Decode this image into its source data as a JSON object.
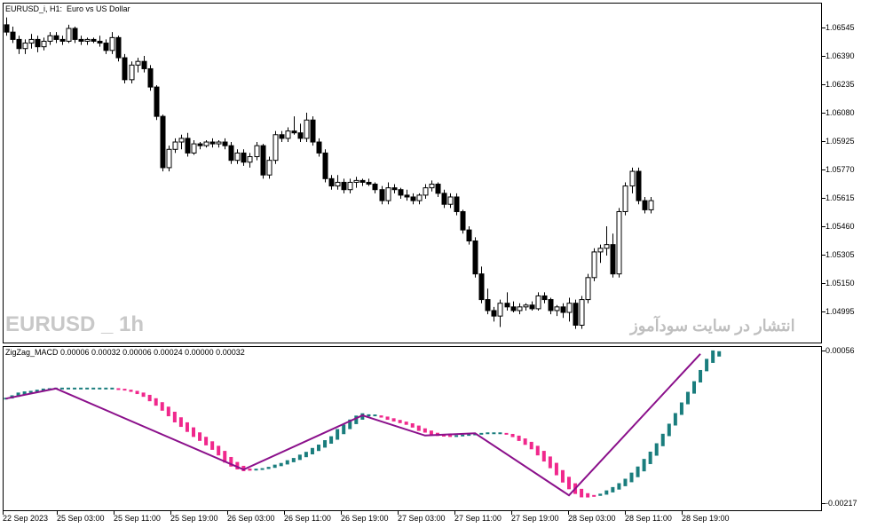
{
  "main_chart": {
    "title": "EURUSD_i, H1:  Euro vs US Dollar",
    "watermark_symbol": "EURUSD _ 1h",
    "watermark_persian": "انتشار در سایت سودآموز",
    "price_labels": [
      "1.06545",
      "1.06390",
      "1.06235",
      "1.06080",
      "1.05925",
      "1.05770",
      "1.05615",
      "1.05460",
      "1.05305",
      "1.05150",
      "1.04995"
    ]
  },
  "indicator": {
    "title": "ZigZag_MACD 0.00006 0.00032 0.00006 0.00024 0.00000 0.00032",
    "labels": [
      "0.00056",
      "-0.00217"
    ]
  },
  "time_labels": [
    "22 Sep 2023",
    "25 Sep 03:00",
    "25 Sep 11:00",
    "25 Sep 19:00",
    "26 Sep 03:00",
    "26 Sep 11:00",
    "26 Sep 19:00",
    "27 Sep 03:00",
    "27 Sep 11:00",
    "27 Sep 19:00",
    "28 Sep 03:00",
    "28 Sep 11:00",
    "28 Sep 19:00"
  ],
  "chart_data": [
    {
      "type": "candlestick",
      "title": "EURUSD_i, H1:  Euro vs US Dollar",
      "ylim": [
        1.0488,
        1.0668
      ],
      "y_ticks": [
        1.06545,
        1.0639,
        1.06235,
        1.0608,
        1.05925,
        1.0577,
        1.05615,
        1.0546,
        1.05305,
        1.0515,
        1.04995
      ],
      "colors": {
        "bull": "#ffffff",
        "bear": "#000000",
        "outline": "#000000"
      },
      "candles": [
        [
          1.0656,
          1.066,
          1.065,
          1.0652
        ],
        [
          1.0652,
          1.0655,
          1.0646,
          1.0648
        ],
        [
          1.0648,
          1.065,
          1.064,
          1.0643
        ],
        [
          1.0643,
          1.0648,
          1.064,
          1.0646
        ],
        [
          1.0646,
          1.0651,
          1.0643,
          1.0648
        ],
        [
          1.0648,
          1.065,
          1.0641,
          1.0644
        ],
        [
          1.0644,
          1.0649,
          1.0642,
          1.0647
        ],
        [
          1.0647,
          1.0652,
          1.0645,
          1.065
        ],
        [
          1.065,
          1.0652,
          1.0646,
          1.0648
        ],
        [
          1.0648,
          1.065,
          1.0645,
          1.0647
        ],
        [
          1.0647,
          1.0656,
          1.0646,
          1.0654
        ],
        [
          1.0654,
          1.0655,
          1.0646,
          1.0648
        ],
        [
          1.0648,
          1.065,
          1.0645,
          1.0647
        ],
        [
          1.0647,
          1.0649,
          1.0645,
          1.0648
        ],
        [
          1.0648,
          1.0649,
          1.0646,
          1.0647
        ],
        [
          1.0647,
          1.065,
          1.0644,
          1.0646
        ],
        [
          1.0646,
          1.0648,
          1.064,
          1.0642
        ],
        [
          1.0642,
          1.0652,
          1.064,
          1.0649
        ],
        [
          1.0649,
          1.065,
          1.0636,
          1.0638
        ],
        [
          1.0638,
          1.064,
          1.0624,
          1.0626
        ],
        [
          1.0626,
          1.0636,
          1.0624,
          1.0634
        ],
        [
          1.0634,
          1.0638,
          1.063,
          1.0636
        ],
        [
          1.0636,
          1.0639,
          1.063,
          1.0632
        ],
        [
          1.0632,
          1.0634,
          1.062,
          1.0622
        ],
        [
          1.0622,
          1.0623,
          1.0604,
          1.0606
        ],
        [
          1.0606,
          1.0607,
          1.0576,
          1.0578
        ],
        [
          1.0578,
          1.059,
          1.0576,
          1.0588
        ],
        [
          1.0588,
          1.0594,
          1.0586,
          1.0592
        ],
        [
          1.0592,
          1.0596,
          1.0588,
          1.0594
        ],
        [
          1.0594,
          1.0597,
          1.0584,
          1.0586
        ],
        [
          1.0586,
          1.0593,
          1.0585,
          1.0591
        ],
        [
          1.0591,
          1.0592,
          1.0588,
          1.059
        ],
        [
          1.059,
          1.0593,
          1.0589,
          1.0592
        ],
        [
          1.0592,
          1.0594,
          1.0589,
          1.0591
        ],
        [
          1.0591,
          1.0593,
          1.0589,
          1.0592
        ],
        [
          1.0592,
          1.0594,
          1.0588,
          1.059
        ],
        [
          1.059,
          1.0592,
          1.058,
          1.0582
        ],
        [
          1.0582,
          1.0588,
          1.058,
          1.0586
        ],
        [
          1.0586,
          1.0588,
          1.0579,
          1.0581
        ],
        [
          1.0581,
          1.0586,
          1.0578,
          1.0584
        ],
        [
          1.0584,
          1.0592,
          1.0582,
          1.059
        ],
        [
          1.059,
          1.0591,
          1.0572,
          1.0574
        ],
        [
          1.0574,
          1.0584,
          1.0572,
          1.0582
        ],
        [
          1.0582,
          1.0598,
          1.058,
          1.0596
        ],
        [
          1.0596,
          1.0598,
          1.0592,
          1.0594
        ],
        [
          1.0594,
          1.06,
          1.0592,
          1.0598
        ],
        [
          1.0598,
          1.0606,
          1.0596,
          1.0597
        ],
        [
          1.0597,
          1.0602,
          1.0592,
          1.0594
        ],
        [
          1.0594,
          1.0608,
          1.0592,
          1.0604
        ],
        [
          1.0604,
          1.0606,
          1.059,
          1.0592
        ],
        [
          1.0592,
          1.0594,
          1.0584,
          1.0586
        ],
        [
          1.0586,
          1.0588,
          1.057,
          1.0572
        ],
        [
          1.0572,
          1.0574,
          1.0566,
          1.0568
        ],
        [
          1.0568,
          1.0574,
          1.0566,
          1.057
        ],
        [
          1.057,
          1.0572,
          1.0564,
          1.0566
        ],
        [
          1.0566,
          1.0572,
          1.0564,
          1.057
        ],
        [
          1.057,
          1.0573,
          1.0567,
          1.0571
        ],
        [
          1.0571,
          1.0572,
          1.0568,
          1.057
        ],
        [
          1.057,
          1.0572,
          1.0568,
          1.0569
        ],
        [
          1.0569,
          1.057,
          1.0564,
          1.0566
        ],
        [
          1.0566,
          1.0568,
          1.0558,
          1.056
        ],
        [
          1.056,
          1.057,
          1.0558,
          1.0567
        ],
        [
          1.0567,
          1.0569,
          1.0564,
          1.0566
        ],
        [
          1.0566,
          1.0567,
          1.0561,
          1.0563
        ],
        [
          1.0563,
          1.0566,
          1.056,
          1.0562
        ],
        [
          1.0562,
          1.0564,
          1.0558,
          1.056
        ],
        [
          1.056,
          1.0564,
          1.0558,
          1.0563
        ],
        [
          1.0563,
          1.0569,
          1.0561,
          1.0567
        ],
        [
          1.0567,
          1.0571,
          1.0565,
          1.0569
        ],
        [
          1.0569,
          1.057,
          1.0562,
          1.0564
        ],
        [
          1.0564,
          1.0566,
          1.0556,
          1.0558
        ],
        [
          1.0558,
          1.0564,
          1.0556,
          1.0562
        ],
        [
          1.0562,
          1.0564,
          1.0552,
          1.0554
        ],
        [
          1.0554,
          1.0555,
          1.0542,
          1.0544
        ],
        [
          1.0544,
          1.0546,
          1.0536,
          1.0538
        ],
        [
          1.0538,
          1.054,
          1.0518,
          1.052
        ],
        [
          1.052,
          1.0524,
          1.0504,
          1.0506
        ],
        [
          1.0506,
          1.0512,
          1.0498,
          1.05
        ],
        [
          1.05,
          1.0502,
          1.0494,
          1.0497
        ],
        [
          1.0497,
          1.0506,
          1.0491,
          1.0504
        ],
        [
          1.0504,
          1.051,
          1.05,
          1.0502
        ],
        [
          1.0502,
          1.0505,
          1.0499,
          1.05
        ],
        [
          1.05,
          1.0504,
          1.0498,
          1.0502
        ],
        [
          1.0502,
          1.0504,
          1.05,
          1.0503
        ],
        [
          1.0503,
          1.0505,
          1.05,
          1.0501
        ],
        [
          1.0501,
          1.051,
          1.05,
          1.0508
        ],
        [
          1.0508,
          1.051,
          1.0504,
          1.0506
        ],
        [
          1.0506,
          1.0507,
          1.0498,
          1.05
        ],
        [
          1.05,
          1.0503,
          1.0497,
          1.0502
        ],
        [
          1.0502,
          1.0504,
          1.0496,
          1.0499
        ],
        [
          1.0499,
          1.0507,
          1.0494,
          1.0504
        ],
        [
          1.0504,
          1.0506,
          1.049,
          1.0492
        ],
        [
          1.0492,
          1.0508,
          1.049,
          1.0506
        ],
        [
          1.0506,
          1.052,
          1.0504,
          1.0518
        ],
        [
          1.0518,
          1.0534,
          1.0516,
          1.0532
        ],
        [
          1.0532,
          1.0536,
          1.0526,
          1.0534
        ],
        [
          1.0534,
          1.0546,
          1.053,
          1.0536
        ],
        [
          1.0536,
          1.0542,
          1.0518,
          1.052
        ],
        [
          1.052,
          1.0556,
          1.0518,
          1.0554
        ],
        [
          1.0554,
          1.057,
          1.0552,
          1.0568
        ],
        [
          1.0568,
          1.0578,
          1.0564,
          1.0576
        ],
        [
          1.0576,
          1.0578,
          1.0558,
          1.056
        ],
        [
          1.056,
          1.0562,
          1.0553,
          1.0555
        ],
        [
          1.0555,
          1.0562,
          1.0553,
          1.056
        ]
      ]
    },
    {
      "type": "line",
      "title": "ZigZag_MACD 0.00006 0.00032 0.00006 0.00024 0.00000 0.00032",
      "ylim": [
        -0.00217,
        0.00056
      ],
      "colors": {
        "rising": "#1a7d7d",
        "falling": "#f0288c",
        "zigzag": "#8b108b"
      },
      "zigzag_points": [
        [
          0,
          -0.0003
        ],
        [
          8,
          -0.00012
        ],
        [
          38,
          -0.00157
        ],
        [
          57,
          -0.0006
        ],
        [
          67,
          -0.00096
        ],
        [
          75,
          -0.00092
        ],
        [
          90,
          -0.00203
        ],
        [
          111,
          0.0005
        ]
      ],
      "series": [
        {
          "values": [
            -0.0003,
            -0.00027,
            -0.00023,
            -0.0002,
            -0.00018,
            -0.00016,
            -0.00014,
            -0.00013,
            -0.00012,
            -0.00012,
            -0.00012,
            -0.00012,
            -0.00012,
            -0.00012,
            -0.00012,
            -0.00012,
            -0.00012,
            -0.00012,
            -0.00013,
            -0.00014,
            -0.00016,
            -0.00019,
            -0.00023,
            -0.00029,
            -0.00036,
            -0.00044,
            -0.00053,
            -0.00063,
            -0.00072,
            -0.00081,
            -0.0009,
            -0.00098,
            -0.00106,
            -0.00114,
            -0.00123,
            -0.00134,
            -0.00143,
            -0.0015,
            -0.00155,
            -0.00157,
            -0.00157,
            -0.00156,
            -0.00154,
            -0.00151,
            -0.00148,
            -0.00144,
            -0.0014,
            -0.00135,
            -0.0013,
            -0.00124,
            -0.00118,
            -0.00111,
            -0.00104,
            -0.00094,
            -0.00085,
            -0.00076,
            -0.00068,
            -0.00062,
            -0.0006,
            -0.0006,
            -0.00062,
            -0.00065,
            -0.00068,
            -0.00071,
            -0.00074,
            -0.00078,
            -0.00083,
            -0.00087,
            -0.00091,
            -0.00094,
            -0.00096,
            -0.00097,
            -0.00097,
            -0.00096,
            -0.00095,
            -0.00094,
            -0.00093,
            -0.00092,
            -0.00092,
            -0.00092,
            -0.00093,
            -0.00096,
            -0.00101,
            -0.00107,
            -0.00114,
            -0.00123,
            -0.00133,
            -0.00144,
            -0.00156,
            -0.00169,
            -0.00181,
            -0.00191,
            -0.00199,
            -0.00203,
            -0.00204,
            -0.00202,
            -0.00198,
            -0.00193,
            -0.00187,
            -0.0018,
            -0.00171,
            -0.00161,
            -0.00149,
            -0.00136,
            -0.00121,
            -0.00104,
            -0.00086,
            -0.00067,
            -0.00048,
            -0.00029,
            -0.0001,
            0.0001,
            0.0003,
            0.00045,
            0.0005
          ]
        }
      ]
    }
  ]
}
